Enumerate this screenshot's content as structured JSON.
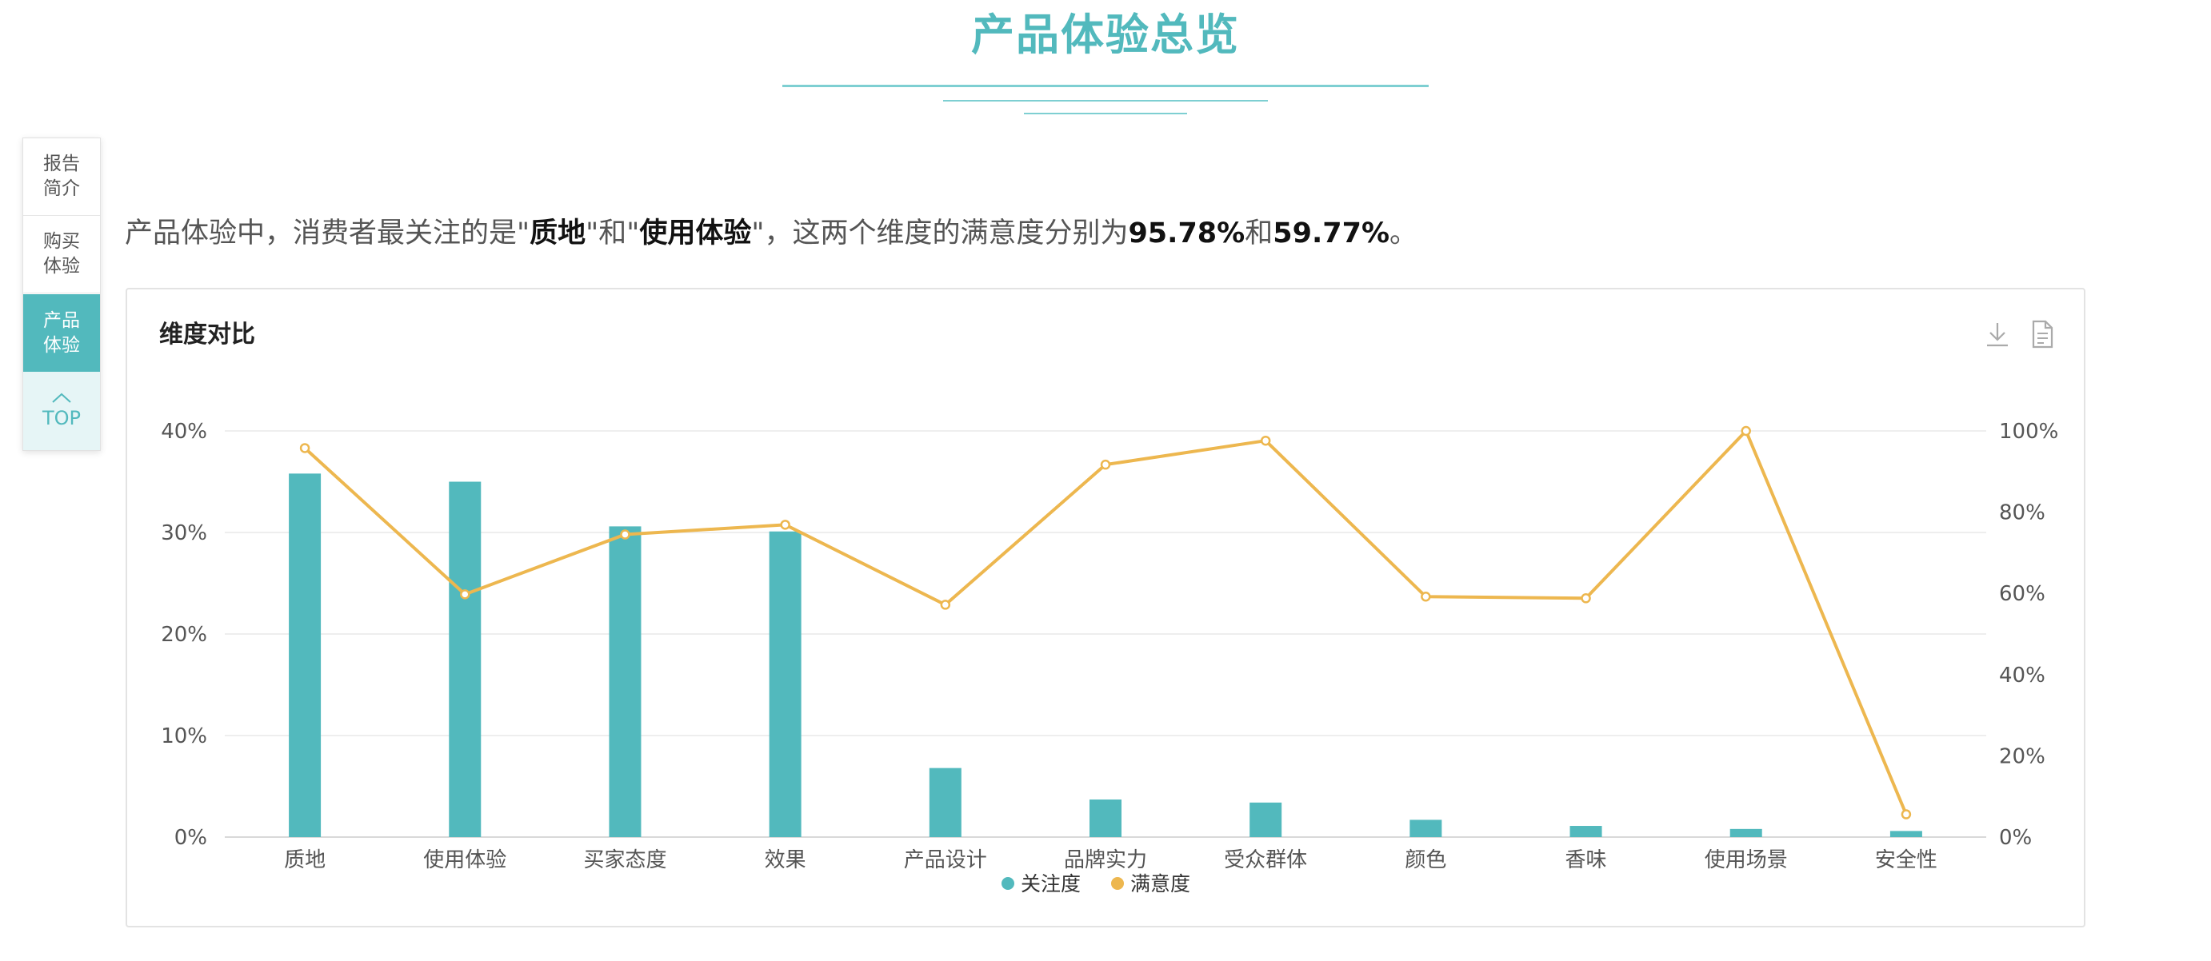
{
  "page": {
    "title": "产品体验总览"
  },
  "colors": {
    "accent": "#52b9bd",
    "line": "#edb74f",
    "deco": "#7ecfd2"
  },
  "side_nav": {
    "items": [
      {
        "label": "报告简介"
      },
      {
        "label": "购买体验"
      },
      {
        "label": "产品体验",
        "active": true
      }
    ],
    "top_label": "TOP",
    "top_icon": "chevron-up-icon"
  },
  "summary": {
    "prefix": "产品体验中，消费者最关注的是\"",
    "dim1": "质地",
    "mid1": "\"和\"",
    "dim2": "使用体验",
    "mid2": "\"，这两个维度的满意度分别为",
    "val1": "95.78%",
    "mid3": "和",
    "val2": "59.77%",
    "suffix": "。"
  },
  "card": {
    "title": "维度对比",
    "tools": [
      {
        "icon": "download-icon"
      },
      {
        "icon": "document-icon"
      }
    ]
  },
  "chart_data": {
    "type": "bar",
    "title": "维度对比",
    "categories": [
      "质地",
      "使用体验",
      "买家态度",
      "效果",
      "产品设计",
      "品牌实力",
      "受众群体",
      "颜色",
      "香味",
      "使用场景",
      "安全性"
    ],
    "series": [
      {
        "name": "关注度",
        "type": "bar",
        "axis": "left",
        "color": "#52b9bd",
        "values": [
          35.8,
          35.0,
          30.6,
          30.1,
          6.8,
          3.7,
          3.4,
          1.7,
          1.1,
          0.8,
          0.6
        ]
      },
      {
        "name": "满意度",
        "type": "line",
        "axis": "right",
        "color": "#edb74f",
        "values": [
          95.78,
          59.77,
          74.5,
          76.9,
          57.2,
          91.7,
          97.6,
          59.2,
          58.8,
          100.0,
          5.6
        ]
      }
    ],
    "y_left": {
      "ticks": [
        "0%",
        "10%",
        "20%",
        "30%",
        "40%"
      ],
      "min": 0,
      "max": 40
    },
    "y_right": {
      "ticks": [
        "0%",
        "20%",
        "40%",
        "60%",
        "80%",
        "100%"
      ],
      "min": 0,
      "max": 100
    },
    "grid": true,
    "legend_position": "bottom-center"
  }
}
